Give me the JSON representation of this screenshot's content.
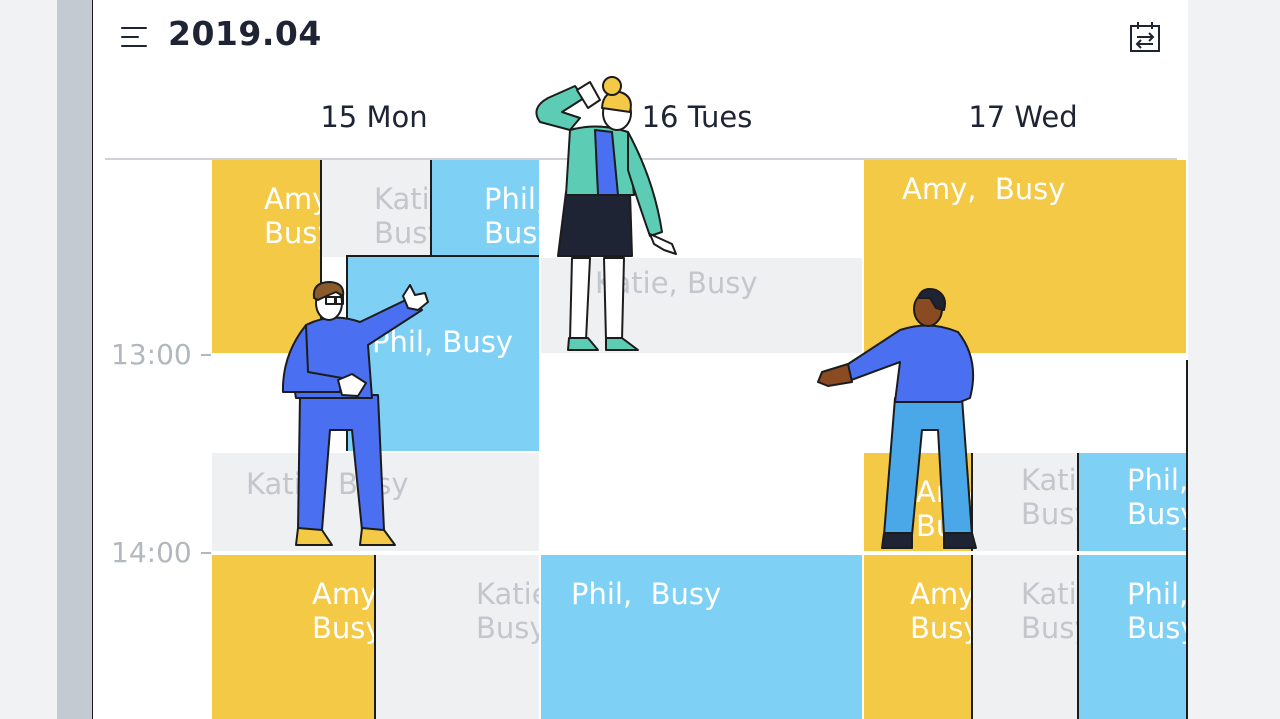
{
  "header": {
    "title": "2019.04",
    "menu_icon": "hamburger-icon",
    "switch_icon": "calendar-switch-icon"
  },
  "days": [
    {
      "label": "15 Mon"
    },
    {
      "label": "16 Tues"
    },
    {
      "label": "17 Wed"
    }
  ],
  "times": [
    "13:00",
    "14:00"
  ],
  "events": {
    "mon_amy_1": "Amy,\nBusy",
    "mon_katie_1": "Katie,\nBusy",
    "mon_phil_1": "Phil,\nBusy",
    "mon_phil_2": "Phil, Busy",
    "mon_katie_2": "Katie, Busy",
    "mon_amy_3": "Amy,\nBusy",
    "mon_katie_3": "Katie,\nBusy",
    "tue_katie_1": "Katie, Busy",
    "tue_phil_1": "Phil,  Busy",
    "wed_amy_1": "Amy,  Busy",
    "wed_amy_2": "Amy,\nBusy",
    "wed_katie_2": "Katie,\nBusy",
    "wed_phil_2": "Phil,\nBusy",
    "wed_amy_3": "Amy,\nBusy",
    "wed_katie_3": "Katie,\nBusy",
    "wed_phil_3": "Phil,\nBusy"
  },
  "colors": {
    "amy": "#f3c945",
    "phil": "#7ed1f5",
    "katie": "#eef0f2",
    "ink": "#1e2433"
  },
  "illustrations": [
    "man-with-glasses-thumbs-up",
    "woman-saluting",
    "man-pointing"
  ]
}
